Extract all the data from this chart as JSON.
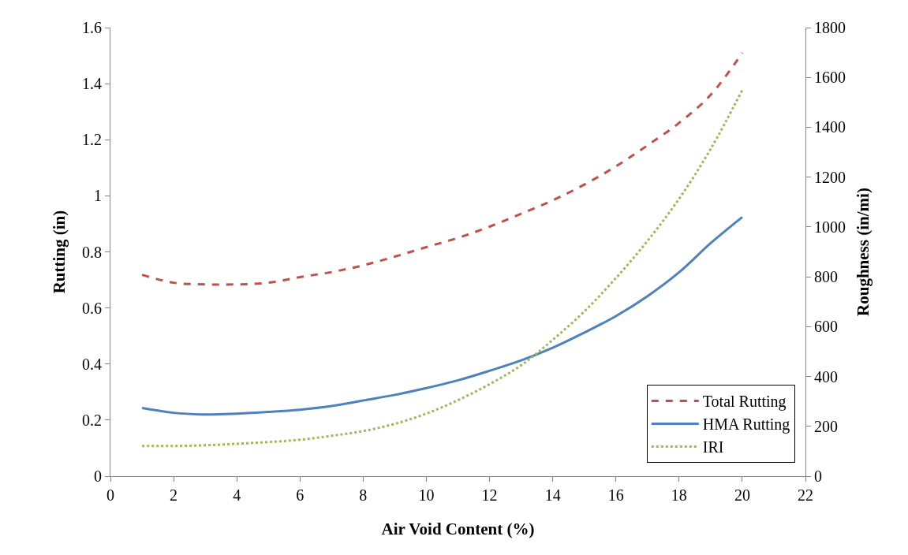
{
  "chart_data": {
    "type": "line",
    "xlabel": "Air Void Content (%)",
    "ylabel": "Rutting (in)",
    "y2label": "Roughness (in/mi)",
    "x": [
      1,
      2,
      3,
      4,
      5,
      6,
      7,
      8,
      9,
      10,
      11,
      12,
      13,
      14,
      15,
      16,
      17,
      18,
      19,
      20
    ],
    "xlim": [
      0,
      22
    ],
    "xticks": [
      0,
      2,
      4,
      6,
      8,
      10,
      12,
      14,
      16,
      18,
      20,
      22
    ],
    "ylim": [
      0,
      1.6
    ],
    "yticks": [
      0,
      0.2,
      0.4,
      0.6,
      0.8,
      1,
      1.2,
      1.4,
      1.6
    ],
    "y2lim": [
      0,
      1800
    ],
    "y2ticks": [
      0,
      200,
      400,
      600,
      800,
      1000,
      1200,
      1400,
      1600,
      1800
    ],
    "legend": "bottom right",
    "marker": "none",
    "series": [
      {
        "name": "Total Rutting",
        "color": "#c0504d",
        "line_style": "dashed",
        "values": [
          0.718,
          0.69,
          0.684,
          0.684,
          0.69,
          0.71,
          0.728,
          0.752,
          0.783,
          0.817,
          0.85,
          0.89,
          0.936,
          0.984,
          1.04,
          1.105,
          1.18,
          1.26,
          1.36,
          1.51
        ]
      },
      {
        "name": "HMA Rutting",
        "color": "#4f81bd",
        "line_style": "solid",
        "values": [
          0.243,
          0.226,
          0.22,
          0.223,
          0.229,
          0.237,
          0.25,
          0.27,
          0.29,
          0.314,
          0.342,
          0.376,
          0.413,
          0.458,
          0.512,
          0.571,
          0.642,
          0.727,
          0.831,
          0.924
        ]
      },
      {
        "name": "IRI",
        "color": "#9bbb59",
        "line_style": "dotted",
        "axis": "y2",
        "values": [
          121,
          121,
          124,
          130,
          137,
          146,
          162,
          181,
          210,
          251,
          305,
          369,
          445,
          547,
          661,
          795,
          944,
          1113,
          1313,
          1549
        ]
      }
    ]
  }
}
